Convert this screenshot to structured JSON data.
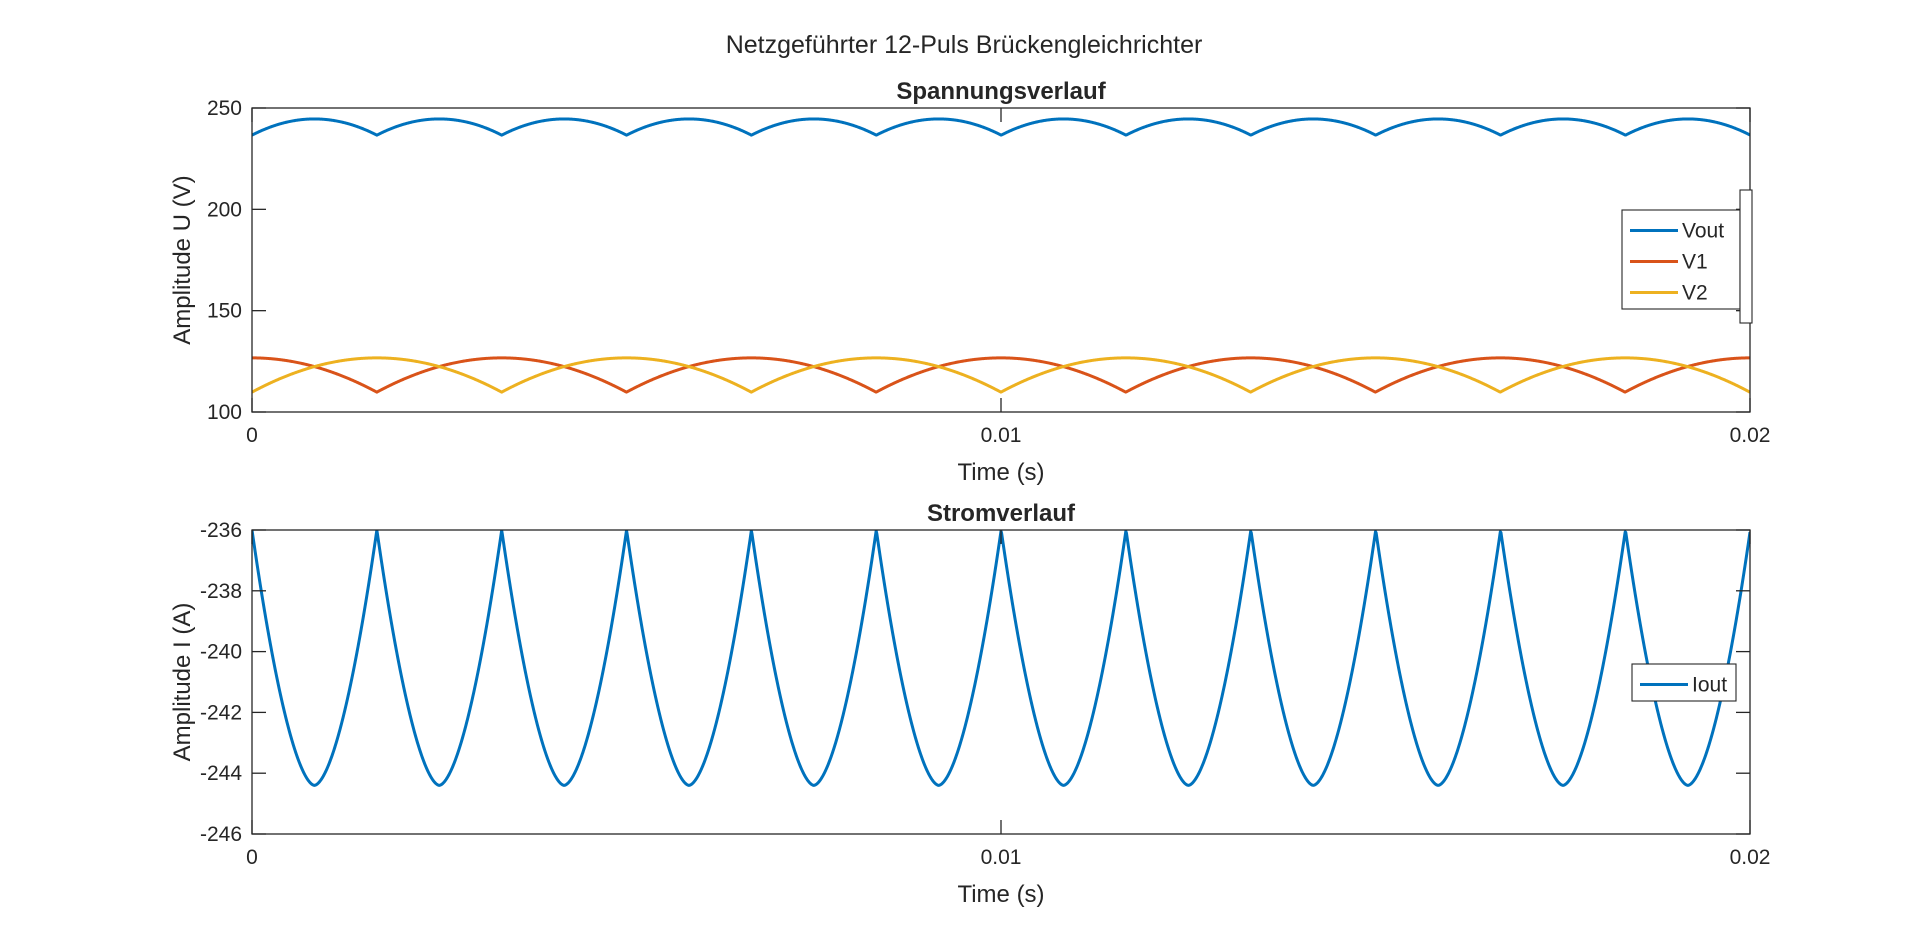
{
  "figure": {
    "suptitle": "Netzgeführter 12-Puls Brückengleichrichter"
  },
  "chart_data": [
    {
      "type": "line",
      "title": "Spannungsverlauf",
      "xlabel": "Time (s)",
      "ylabel": "Amplitude U (V)",
      "xlim": [
        0,
        0.02
      ],
      "ylim": [
        100,
        250
      ],
      "xticks": [
        0,
        0.01,
        0.02
      ],
      "xtick_labels": [
        "0",
        "0.01",
        "0.02"
      ],
      "yticks": [
        100,
        150,
        200,
        250
      ],
      "ytick_labels": [
        "100",
        "150",
        "200",
        "250"
      ],
      "grid": false,
      "legend": "right",
      "series": [
        {
          "name": "Vout",
          "color": "#0072BD",
          "period": 0.001667,
          "x": [
            0,
            0.00042,
            0.00083,
            0.00125,
            0.001667
          ],
          "y": [
            236.6,
            242.8,
            244.6,
            242.8,
            236.6
          ]
        },
        {
          "name": "V1",
          "color": "#D95319",
          "period": 0.003333,
          "x": [
            0,
            0.00083,
            0.001667,
            0.0025,
            0.003333
          ],
          "y": [
            126.7,
            122.3,
            109.8,
            122.3,
            126.7
          ]
        },
        {
          "name": "V2",
          "color": "#EDB120",
          "period": 0.003333,
          "x": [
            0,
            0.00083,
            0.001667,
            0.0025,
            0.003333
          ],
          "y": [
            109.8,
            122.3,
            126.7,
            122.3,
            109.8
          ]
        }
      ]
    },
    {
      "type": "line",
      "title": "Stromverlauf",
      "xlabel": "Time (s)",
      "ylabel": "Amplitude I (A)",
      "xlim": [
        0,
        0.02
      ],
      "ylim": [
        -246,
        -236
      ],
      "xticks": [
        0,
        0.01,
        0.02
      ],
      "xtick_labels": [
        "0",
        "0.01",
        "0.02"
      ],
      "yticks": [
        -246,
        -244,
        -242,
        -240,
        -238,
        -236
      ],
      "ytick_labels": [
        "-246",
        "-244",
        "-242",
        "-240",
        "-238",
        "-236"
      ],
      "grid": false,
      "legend": "right",
      "series": [
        {
          "name": "Iout",
          "color": "#0072BD",
          "period": 0.001667,
          "x": [
            0,
            0.0002,
            0.0005,
            0.00083,
            0.00115,
            0.00145,
            0.001667
          ],
          "y": [
            -236.0,
            -239.8,
            -243.0,
            -244.4,
            -243.0,
            -239.8,
            -236.0
          ]
        }
      ]
    }
  ]
}
